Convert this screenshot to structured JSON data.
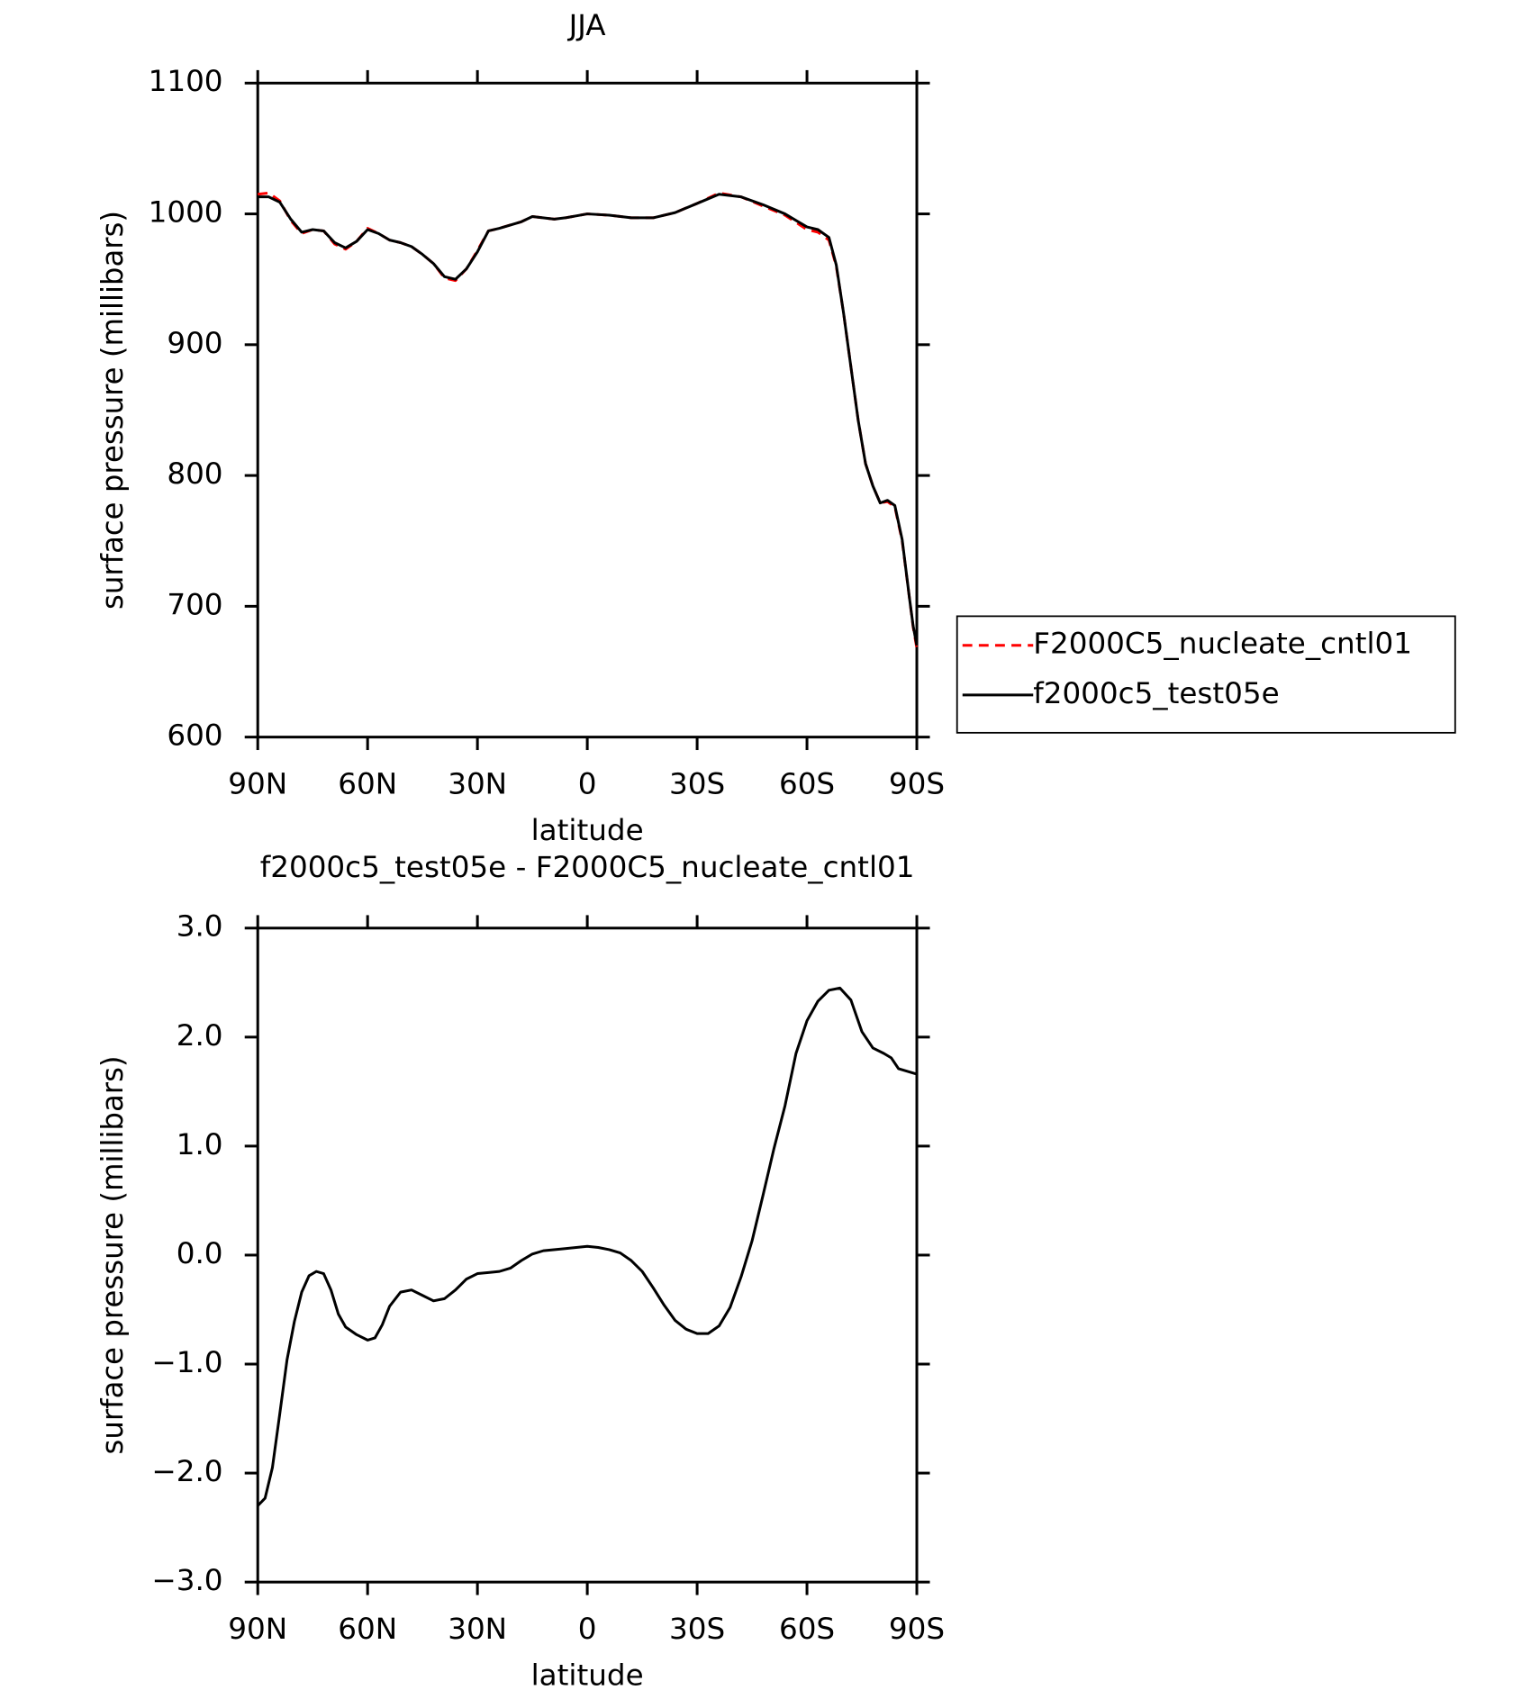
{
  "chart_data": [
    {
      "type": "line",
      "title": "JJA",
      "xlabel": "latitude",
      "ylabel": "surface pressure (millibars)",
      "x": [
        90,
        87,
        84,
        81,
        78,
        75,
        72,
        69,
        66,
        63,
        60,
        57,
        54,
        51,
        48,
        45,
        42,
        39,
        36,
        33,
        30,
        27,
        24,
        18,
        15,
        9,
        6,
        0,
        -6,
        -12,
        -18,
        -24,
        -30,
        -36,
        -42,
        -48,
        -54,
        -60,
        -63,
        -66,
        -68,
        -70,
        -72,
        -74,
        -76,
        -78,
        -80,
        -82,
        -84,
        -86,
        -88,
        -89,
        -90
      ],
      "series": [
        {
          "name": "F2000C5_nucleate_cntl01",
          "color": "#ff0000",
          "linestyle": "dashed",
          "values": [
            1015,
            1016,
            1010,
            995,
            985,
            988,
            987,
            977,
            973,
            979,
            989,
            985,
            980,
            978,
            975,
            969,
            962,
            951,
            949,
            958,
            972,
            987,
            989,
            994,
            998,
            996,
            997,
            1000,
            999,
            997,
            997,
            1001,
            1008,
            1016,
            1013,
            1006,
            999,
            988,
            986,
            980,
            960,
            924,
            883,
            842,
            809,
            792,
            779,
            780,
            776,
            750,
            706,
            684,
            668
          ]
        },
        {
          "name": "f2000c5_test05e",
          "color": "#000000",
          "linestyle": "solid",
          "values": [
            1013,
            1013,
            1009,
            996,
            986,
            988,
            987,
            978,
            974,
            979,
            988,
            985,
            980,
            978,
            975,
            969,
            962,
            952,
            950,
            958,
            971,
            987,
            989,
            994,
            998,
            996,
            997,
            1000,
            999,
            997,
            997,
            1001,
            1008,
            1015,
            1013,
            1007,
            1000,
            990,
            988,
            982,
            961,
            924,
            883,
            842,
            809,
            792,
            779,
            781,
            777,
            751,
            706,
            685,
            670
          ]
        }
      ],
      "xlim": [
        90,
        -90
      ],
      "xticks": [
        {
          "value": 90,
          "label": "90N"
        },
        {
          "value": 60,
          "label": "60N"
        },
        {
          "value": 30,
          "label": "30N"
        },
        0,
        {
          "value": -30,
          "label": "30S"
        },
        {
          "value": -60,
          "label": "60S"
        },
        {
          "value": -90,
          "label": "90S"
        }
      ],
      "ylim": [
        600,
        1100
      ],
      "yticks": [
        600,
        700,
        800,
        900,
        1000,
        1100
      ],
      "legend": "right"
    },
    {
      "type": "line",
      "title": "f2000c5_test05e - F2000C5_nucleate_cntl01",
      "xlabel": "latitude",
      "ylabel": "surface pressure (millibars)",
      "x": [
        90,
        88,
        86,
        84,
        82,
        80,
        78,
        76,
        74,
        72,
        70,
        68,
        66,
        63,
        60,
        58,
        56,
        54,
        51,
        48,
        45,
        42,
        39,
        36,
        33,
        30,
        27,
        24,
        21,
        18,
        15,
        12,
        6,
        0,
        -3,
        -6,
        -9,
        -12,
        -15,
        -18,
        -21,
        -24,
        -27,
        -30,
        -33,
        -36,
        -39,
        -42,
        -45,
        -48,
        -51,
        -54,
        -57,
        -60,
        -63,
        -66,
        -69,
        -72,
        -75,
        -78,
        -81,
        -83,
        -85,
        -90
      ],
      "values": [
        -2.3,
        -2.23,
        -1.95,
        -1.46,
        -0.96,
        -0.61,
        -0.34,
        -0.19,
        -0.15,
        -0.17,
        -0.32,
        -0.54,
        -0.66,
        -0.73,
        -0.78,
        -0.76,
        -0.64,
        -0.47,
        -0.34,
        -0.32,
        -0.37,
        -0.42,
        -0.4,
        -0.32,
        -0.22,
        -0.17,
        -0.16,
        -0.15,
        -0.12,
        -0.05,
        0.01,
        0.04,
        0.06,
        0.08,
        0.07,
        0.05,
        0.02,
        -0.05,
        -0.15,
        -0.3,
        -0.46,
        -0.6,
        -0.68,
        -0.72,
        -0.72,
        -0.65,
        -0.48,
        -0.2,
        0.13,
        0.55,
        0.98,
        1.37,
        1.85,
        2.15,
        2.33,
        2.43,
        2.45,
        2.34,
        2.05,
        1.9,
        1.85,
        1.81,
        1.71,
        1.66
      ],
      "color": "#000000",
      "xlim": [
        90,
        -90
      ],
      "xticks": [
        {
          "value": 90,
          "label": "90N"
        },
        {
          "value": 60,
          "label": "60N"
        },
        {
          "value": 30,
          "label": "30N"
        },
        0,
        {
          "value": -30,
          "label": "30S"
        },
        {
          "value": -60,
          "label": "60S"
        },
        {
          "value": -90,
          "label": "90S"
        }
      ],
      "ylim": [
        -3,
        3
      ],
      "yticks": [
        {
          "value": -3,
          "label": "−3.0"
        },
        {
          "value": -2,
          "label": "−2.0"
        },
        {
          "value": -1,
          "label": "−1.0"
        },
        {
          "value": 0,
          "label": "0.0"
        },
        {
          "value": 1,
          "label": "1.0"
        },
        {
          "value": 2,
          "label": "2.0"
        },
        {
          "value": 3,
          "label": "3.0"
        }
      ]
    }
  ]
}
